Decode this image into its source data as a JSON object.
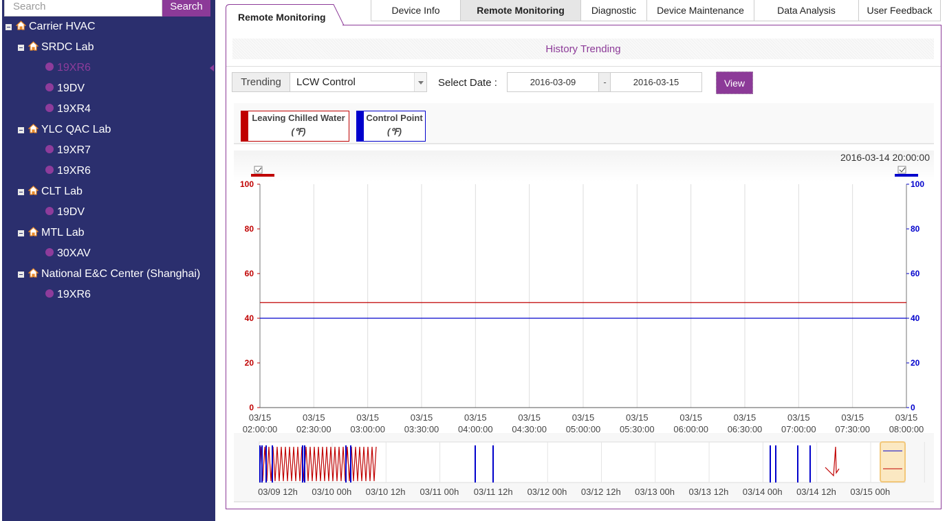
{
  "sidebar": {
    "search_placeholder": "Search",
    "search_button": "Search",
    "tree": [
      {
        "label": "Carrier HVAC",
        "type": "group"
      },
      {
        "label": "SRDC Lab",
        "type": "group"
      },
      {
        "label": "19XR6",
        "type": "leaf",
        "active": true
      },
      {
        "label": "19DV",
        "type": "leaf"
      },
      {
        "label": "19XR4",
        "type": "leaf"
      },
      {
        "label": "YLC QAC Lab",
        "type": "group"
      },
      {
        "label": "19XR7",
        "type": "leaf"
      },
      {
        "label": "19XR6",
        "type": "leaf"
      },
      {
        "label": "CLT Lab",
        "type": "group"
      },
      {
        "label": "19DV",
        "type": "leaf"
      },
      {
        "label": "MTL Lab",
        "type": "group"
      },
      {
        "label": "30XAV",
        "type": "leaf"
      },
      {
        "label": "National E&C Center (Shanghai)",
        "type": "group"
      },
      {
        "label": "19XR6",
        "type": "leaf"
      }
    ]
  },
  "tabs": {
    "active_label": "Remote Monitoring",
    "items": [
      {
        "label": "Device Info"
      },
      {
        "label": "Remote Monitoring",
        "selected": true
      },
      {
        "label": "Diagnostic"
      },
      {
        "label": "Device Maintenance"
      },
      {
        "label": "Data Analysis"
      },
      {
        "label": "User Feedback"
      }
    ]
  },
  "panel": {
    "section_title": "History Trending",
    "trending_label": "Trending",
    "trending_value": "LCW Control",
    "select_date_label": "Select Date :",
    "date_from": "2016-03-09",
    "date_separator": "-",
    "date_to": "2016-03-15",
    "view_button": "View"
  },
  "colors": {
    "accent": "#8c3a98",
    "sidebar_bg": "#2b2f6e",
    "series_red": "#c00000",
    "series_blue": "#0000cc"
  },
  "legend": [
    {
      "name": "Leaving Chilled Water",
      "unit": "(℉)",
      "color": "#c00000"
    },
    {
      "name": "Control Point",
      "unit": "(℉)",
      "color": "#0000cc"
    }
  ],
  "chart_data": {
    "type": "line",
    "timestamp": "2016-03-14 20:00:00",
    "x_ticks": [
      {
        "date": "03/15",
        "time": "02:00:00"
      },
      {
        "date": "03/15",
        "time": "02:30:00"
      },
      {
        "date": "03/15",
        "time": "03:00:00"
      },
      {
        "date": "03/15",
        "time": "03:30:00"
      },
      {
        "date": "03/15",
        "time": "04:00:00"
      },
      {
        "date": "03/15",
        "time": "04:30:00"
      },
      {
        "date": "03/15",
        "time": "05:00:00"
      },
      {
        "date": "03/15",
        "time": "05:30:00"
      },
      {
        "date": "03/15",
        "time": "06:00:00"
      },
      {
        "date": "03/15",
        "time": "06:30:00"
      },
      {
        "date": "03/15",
        "time": "07:00:00"
      },
      {
        "date": "03/15",
        "time": "07:30:00"
      },
      {
        "date": "03/15",
        "time": "08:00:00"
      }
    ],
    "y_left": {
      "min": 0,
      "max": 100,
      "ticks": [
        0,
        20,
        40,
        60,
        80,
        100
      ]
    },
    "y_right": {
      "min": 0,
      "max": 100,
      "ticks": [
        0,
        20,
        40,
        60,
        80,
        100
      ]
    },
    "series": [
      {
        "name": "Leaving Chilled Water",
        "axis": "left",
        "color": "#c00000",
        "values": [
          47,
          47,
          47,
          47,
          47,
          47,
          47,
          47,
          47,
          47,
          47,
          47,
          47
        ]
      },
      {
        "name": "Control Point",
        "axis": "right",
        "color": "#0000cc",
        "values": [
          40,
          40,
          40,
          40,
          40,
          40,
          40,
          40,
          40,
          40,
          40,
          40,
          40
        ]
      }
    ],
    "navigator_ticks": [
      "03/09 12h",
      "03/10 00h",
      "03/10 12h",
      "03/11 00h",
      "03/11 12h",
      "03/12 00h",
      "03/12 12h",
      "03/13 00h",
      "03/13 12h",
      "03/14 00h",
      "03/14 12h",
      "03/15 00h"
    ]
  }
}
